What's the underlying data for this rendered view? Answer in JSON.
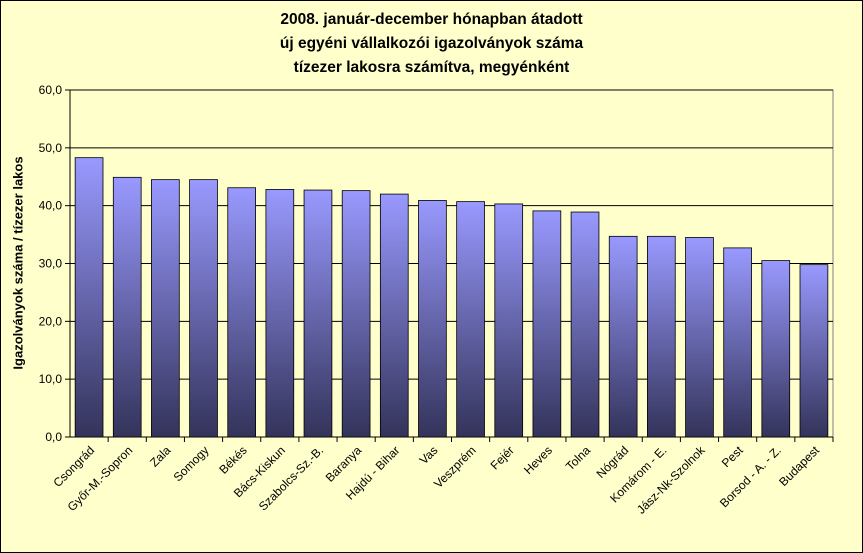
{
  "chart_data": {
    "type": "bar",
    "title": [
      "2008. január-december hónapban átadott",
      "új egyéni vállalkozói  igazolványok száma",
      "tízezer lakosra számítva, megyénként"
    ],
    "xlabel": "",
    "ylabel": "Igazolványok száma / tízezer lakos",
    "ylim": [
      0,
      60
    ],
    "yticks": [
      "0,0",
      "10,0",
      "20,0",
      "30,0",
      "40,0",
      "50,0",
      "60,0"
    ],
    "categories": [
      "Csongrád",
      "Győr-M.-Sopron",
      "Zala",
      "Somogy",
      "Békés",
      "Bács-Kiskun",
      "Szabolcs-Sz.-B.",
      "Baranya",
      "Hajdú - Bihar",
      "Vas",
      "Veszprém",
      "Fejér",
      "Heves",
      "Tolna",
      "Nógrád",
      "Komárom - E.",
      "Jász-Nk-Szolnok",
      "Pest",
      "Borsod - A. - Z.",
      "Budapest"
    ],
    "values": [
      48.3,
      44.9,
      44.5,
      44.5,
      43.1,
      42.8,
      42.7,
      42.6,
      42.0,
      40.9,
      40.7,
      40.3,
      39.1,
      38.9,
      34.7,
      34.7,
      34.5,
      32.7,
      30.5,
      29.8
    ],
    "grid": true,
    "colors": {
      "bar_top": "#9999ff",
      "bar_bottom": "#33335a",
      "plot_bg": "#ffffcc",
      "grid": "#000000"
    }
  }
}
